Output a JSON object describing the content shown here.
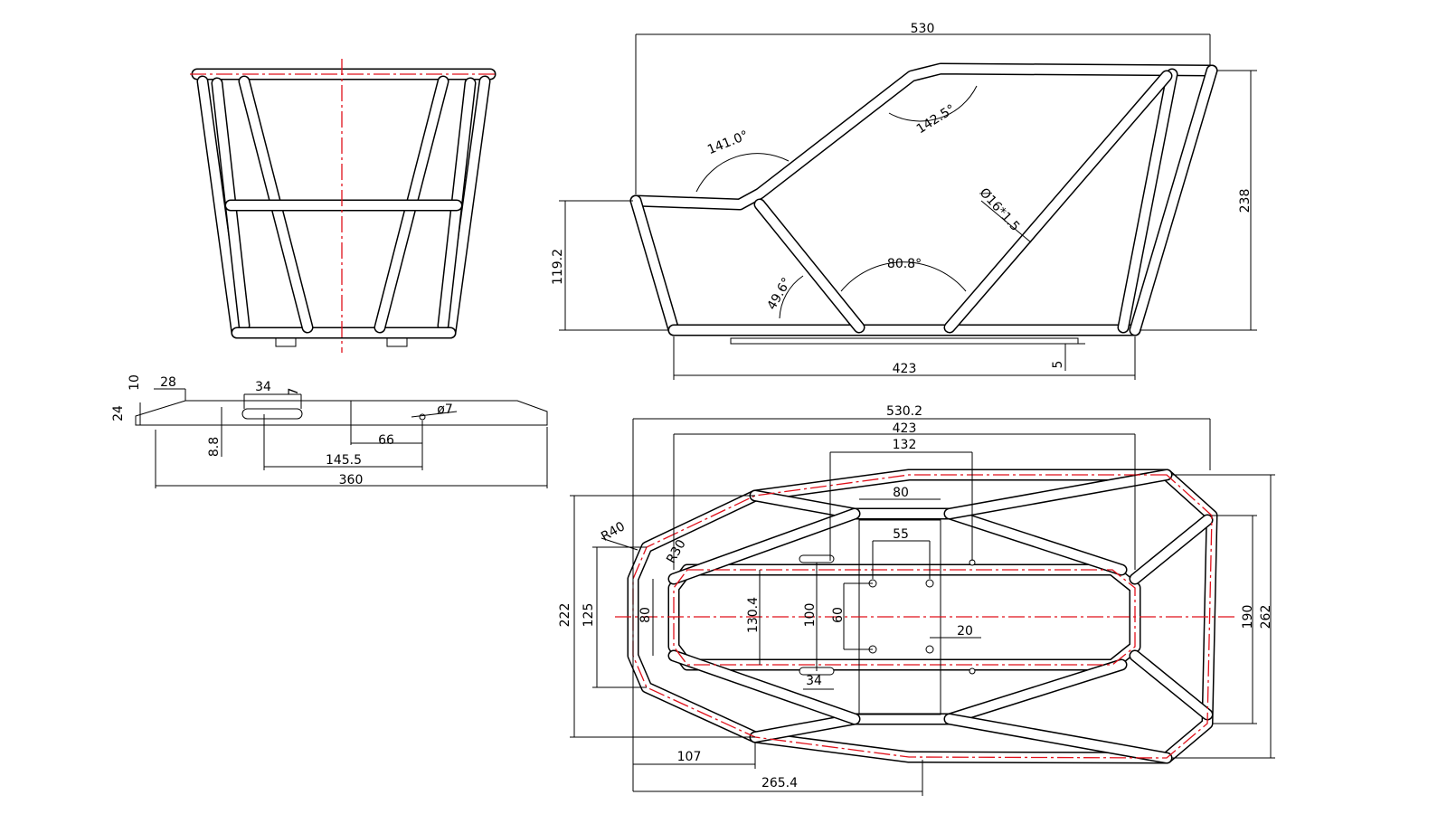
{
  "front_view": {},
  "side_view": {
    "dimensions": [
      "530",
      "238",
      "119.2",
      "141.0°",
      "142.5°",
      "Ø16*1.5",
      "80.8°",
      "49.6°",
      "423",
      "5"
    ]
  },
  "bracket": {
    "dimensions": [
      "10",
      "28",
      "34",
      "7",
      "24",
      "ø7",
      "8.8",
      "66",
      "145.5",
      "360"
    ]
  },
  "top_view": {
    "dimensions": [
      "530.2",
      "423",
      "132",
      "80",
      "55",
      "R40",
      "R30",
      "222",
      "125",
      "80",
      "130.4",
      "100",
      "60",
      "20",
      "34",
      "190",
      "262",
      "107",
      "265.4"
    ]
  }
}
